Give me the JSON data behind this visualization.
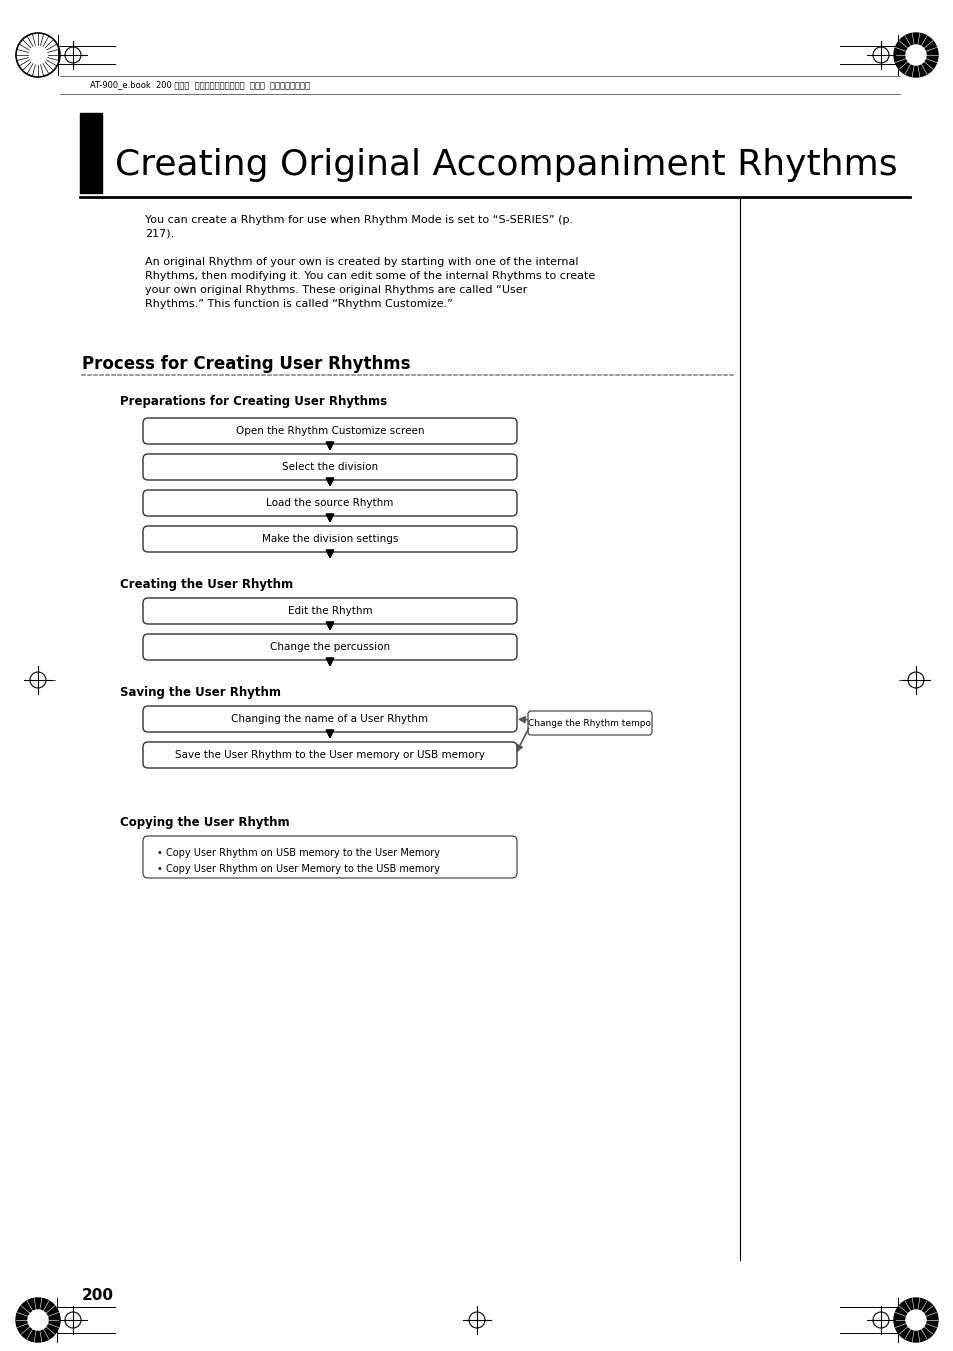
{
  "bg_color": "#ffffff",
  "page_title": "Creating Original Accompaniment Rhythms",
  "section_title": "Process for Creating User Rhythms",
  "header_text": "AT-900_e.book  200 ページ  ２００８年９月１６日  火曜日  午前１０時３８分",
  "body_text_1": "You can create a Rhythm for use when Rhythm Mode is set to “S-SERIES” (p.\n217).",
  "body_text_2": "An original Rhythm of your own is created by starting with one of the internal\nRhythms, then modifying it. You can edit some of the internal Rhythms to create\nyour own original Rhythms. These original Rhythms are called “User\nRhythms.” This function is called “Rhythm Customize.”",
  "subsection1_title": "Preparations for Creating User Rhythms",
  "subsection2_title": "Creating the User Rhythm",
  "subsection3_title": "Saving the User Rhythm",
  "subsection4_title": "Copying the User Rhythm",
  "boxes_prep": [
    "Open the Rhythm Customize screen",
    "Select the division",
    "Load the source Rhythm",
    "Make the division settings"
  ],
  "boxes_create": [
    "Edit the Rhythm",
    "Change the percussion"
  ],
  "boxes_save": [
    "Changing the name of a User Rhythm",
    "Save the User Rhythm to the User memory or USB memory"
  ],
  "box_side": "Change the Rhythm tempo",
  "boxes_copy_lines": [
    "• Copy User Rhythm on USB memory to the User Memory",
    "• Copy User Rhythm on User Memory to the USB memory"
  ],
  "page_number": "200",
  "fig_w": 9.54,
  "fig_h": 13.51,
  "dpi": 100
}
